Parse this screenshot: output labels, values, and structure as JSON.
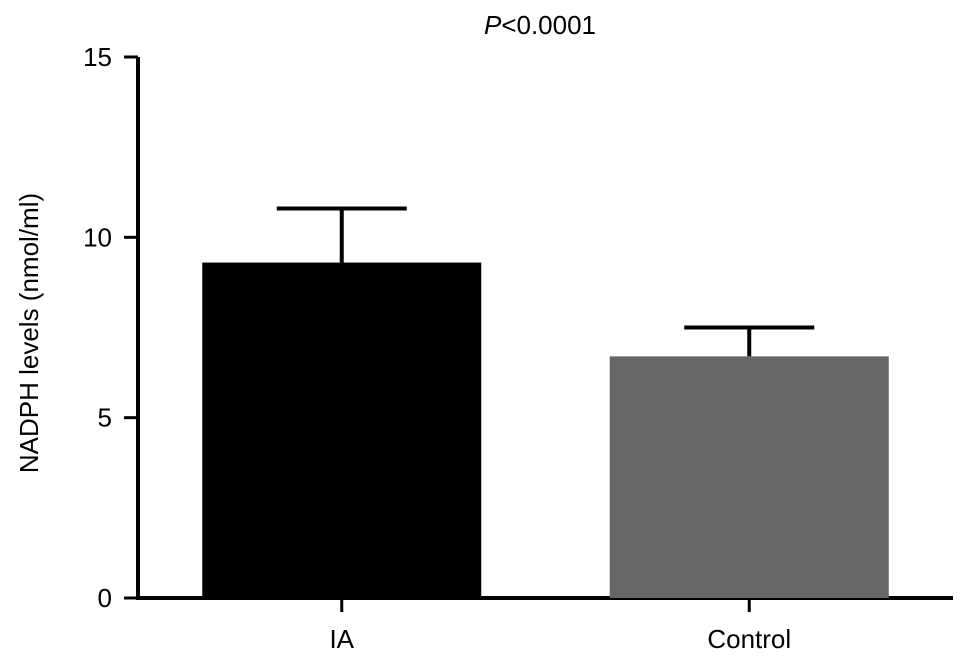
{
  "chart_data": {
    "type": "bar",
    "title": "",
    "annotation": {
      "italic_part": "P",
      "rest": "<0.0001"
    },
    "xlabel": "",
    "ylabel": "NADPH levels (nmol/ml)",
    "ylim": [
      0,
      15
    ],
    "yticks": [
      0,
      5,
      10,
      15
    ],
    "categories": [
      "IA",
      "Control"
    ],
    "values": [
      9.3,
      6.7
    ],
    "errors": [
      1.5,
      0.8
    ],
    "colors": [
      "#000000",
      "#666666"
    ],
    "grid": false
  }
}
